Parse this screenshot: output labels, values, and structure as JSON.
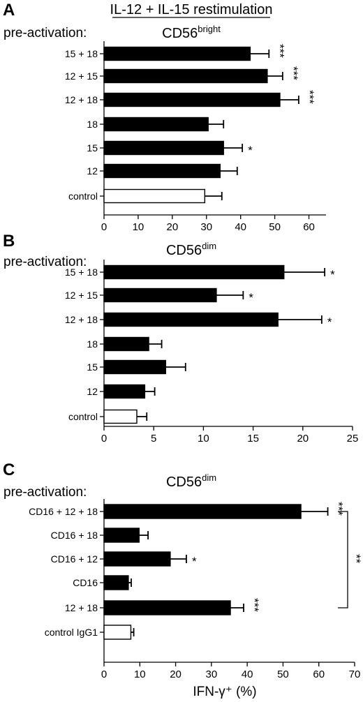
{
  "figure": {
    "header": "IL-12 + IL-15 restimulation",
    "xlabel": "IFN-γ⁺ (%)"
  },
  "chart_data": [
    {
      "type": "bar",
      "orientation": "horizontal",
      "panel": "A",
      "row_label": "pre-activation:",
      "title": "CD56",
      "title_sup": "bright",
      "categories": [
        "15 + 18",
        "12 + 15",
        "12 + 18",
        "18",
        "15",
        "12",
        "control"
      ],
      "values": [
        42.8,
        47.8,
        51.5,
        30.5,
        35.0,
        34.0,
        29.5
      ],
      "errors": [
        5.5,
        4.5,
        5.5,
        4.5,
        5.5,
        5.0,
        5.0
      ],
      "significance": [
        "***",
        "***",
        "***",
        "",
        "*",
        "",
        ""
      ],
      "filled": [
        true,
        true,
        true,
        true,
        true,
        true,
        false
      ],
      "xlim": [
        0,
        65
      ],
      "xticks": [
        0,
        10,
        20,
        30,
        40,
        50,
        60
      ],
      "bar_color": "#000000",
      "control_color": "#ffffff"
    },
    {
      "type": "bar",
      "orientation": "horizontal",
      "panel": "B",
      "row_label": "pre-activation:",
      "title": "CD56",
      "title_sup": "dim",
      "categories": [
        "15 + 18",
        "12 + 15",
        "12 + 18",
        "18",
        "15",
        "12",
        "control"
      ],
      "values": [
        18.1,
        11.3,
        17.5,
        4.5,
        6.2,
        4.1,
        3.3
      ],
      "errors": [
        4.1,
        2.7,
        4.4,
        1.3,
        2.0,
        1.0,
        1.0
      ],
      "significance": [
        "*",
        "*",
        "*",
        "",
        "",
        "",
        ""
      ],
      "filled": [
        true,
        true,
        true,
        true,
        true,
        true,
        false
      ],
      "xlim": [
        0,
        25
      ],
      "xticks": [
        0,
        5,
        10,
        15,
        20,
        25
      ],
      "bar_color": "#000000",
      "control_color": "#ffffff"
    },
    {
      "type": "bar",
      "orientation": "horizontal",
      "panel": "C",
      "row_label": "pre-activation:",
      "title": "CD56",
      "title_sup": "dim",
      "categories": [
        "CD16 + 12 + 18",
        "CD16 + 18",
        "CD16 + 12",
        "CD16",
        "12 + 18",
        "control IgG1"
      ],
      "values": [
        55.0,
        9.8,
        18.5,
        6.8,
        35.3,
        7.5
      ],
      "errors": [
        7.5,
        2.5,
        4.5,
        0.8,
        3.7,
        0.8
      ],
      "significance": [
        "***",
        "",
        "*",
        "",
        "***",
        ""
      ],
      "filled": [
        true,
        true,
        true,
        true,
        true,
        false
      ],
      "bracket": {
        "from": "CD16 + 12 + 18",
        "to": "12 + 18",
        "label": "**"
      },
      "xlim": [
        0,
        70
      ],
      "xticks": [
        0,
        10,
        20,
        30,
        40,
        50,
        60,
        70
      ],
      "bar_color": "#000000",
      "control_color": "#ffffff"
    }
  ]
}
